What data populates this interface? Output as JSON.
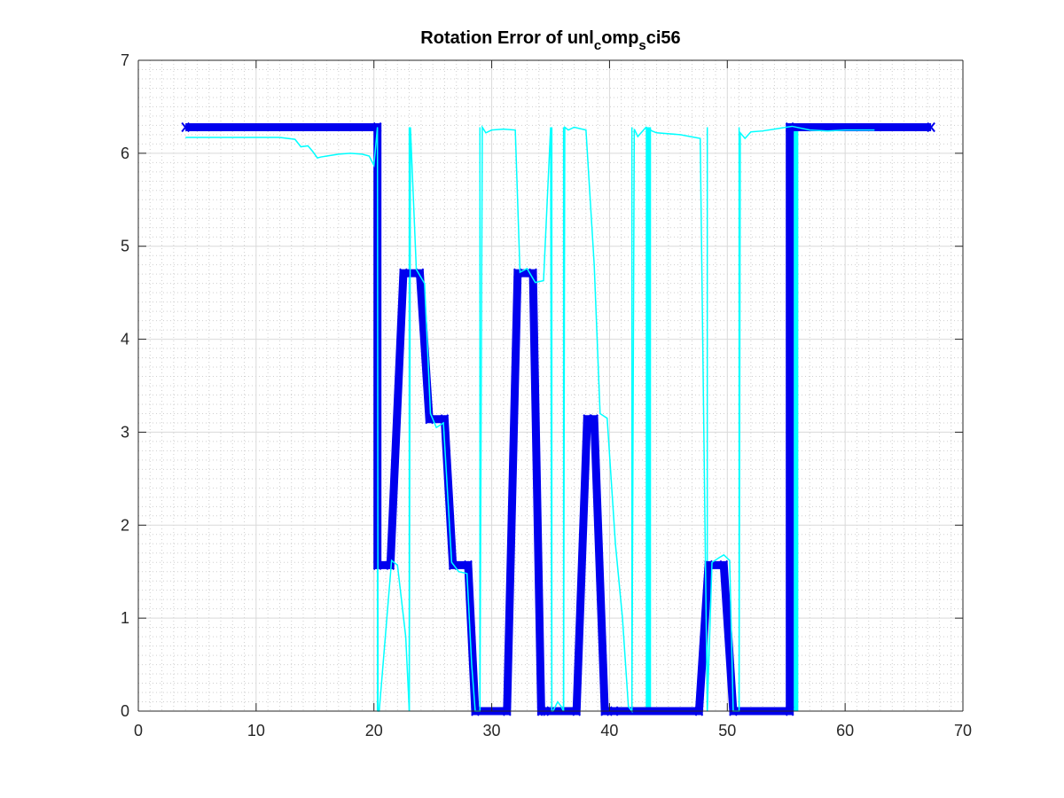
{
  "chart_data": {
    "type": "line",
    "title_parts": [
      "Rotation Error of unl",
      "c",
      "omp",
      "s",
      "ci56"
    ],
    "xlabel": "",
    "ylabel": "",
    "xlim": [
      0,
      70
    ],
    "ylim": [
      0,
      7
    ],
    "xticks": [
      "0",
      "10",
      "20",
      "30",
      "40",
      "50",
      "60",
      "70"
    ],
    "yticks": [
      "0",
      "1",
      "2",
      "3",
      "4",
      "5",
      "6",
      "7"
    ],
    "grid": true,
    "minor_grid": true,
    "legend": "none",
    "colors": {
      "thick_series": "#0000ee",
      "thin_series": "#00ffff",
      "axes": "#262626",
      "grid": "#d9d9d9"
    },
    "series": [
      {
        "color": "#0000ee",
        "width": 9,
        "x": [
          4.0,
          20.3,
          20.3,
          21.4,
          22.5,
          23.9,
          24.7,
          26.0,
          26.7,
          28.0,
          28.6,
          31.3,
          32.2,
          33.5,
          34.2,
          34.5,
          37.2,
          38.1,
          38.7,
          39.6,
          40.4,
          47.6,
          48.4,
          49.7,
          50.5,
          55.3,
          55.3,
          67.3
        ],
        "y": [
          6.28,
          6.28,
          1.57,
          1.57,
          4.71,
          4.71,
          3.14,
          3.14,
          1.57,
          1.57,
          0.0,
          0.0,
          4.71,
          4.71,
          0.0,
          0.0,
          0.0,
          3.14,
          3.14,
          0.0,
          0.0,
          0.0,
          1.57,
          1.57,
          0.0,
          0.0,
          6.28,
          6.28
        ]
      },
      {
        "color": "#00ffff",
        "width": 1.5,
        "x": [
          4.0,
          10.0,
          12.0,
          13.3,
          13.8,
          14.4,
          14.8,
          15.2,
          15.5,
          16.0,
          17.0,
          18.0,
          19.0,
          19.6,
          20.0,
          20.3,
          20.35,
          20.45,
          21.5,
          22.0,
          22.7,
          23.0,
          23.1,
          23.6,
          24.3,
          24.8,
          25.3,
          25.9,
          26.6,
          27.2,
          27.9,
          28.3,
          28.6,
          29.0,
          29.2,
          29.5,
          30.0,
          31.0,
          32.0,
          32.4,
          33.0,
          33.7,
          34.4,
          35.0,
          35.1,
          35.2,
          35.6,
          35.9,
          36.1,
          36.2,
          36.5,
          37.0,
          38.0,
          38.7,
          39.2,
          39.8,
          40.5,
          41.1,
          41.6,
          41.9,
          42.1,
          42.4,
          43.1,
          43.6,
          44.0,
          46.0,
          47.7,
          48.3,
          48.7,
          49.3,
          49.7,
          50.2,
          50.5,
          51.0,
          51.1,
          51.5,
          52.0,
          53.0,
          54.0,
          55.5,
          57.0,
          58.5,
          60.0,
          62.5
        ],
        "y": [
          6.17,
          6.17,
          6.17,
          6.15,
          6.07,
          6.08,
          6.02,
          5.95,
          5.96,
          5.97,
          5.99,
          6.0,
          5.99,
          5.97,
          5.87,
          6.28,
          0.0,
          0.0,
          1.62,
          1.57,
          0.8,
          0.0,
          6.28,
          4.75,
          4.6,
          3.2,
          3.05,
          3.1,
          1.6,
          1.5,
          1.48,
          0.5,
          0.0,
          0.0,
          6.28,
          6.22,
          6.25,
          6.26,
          6.25,
          4.72,
          4.76,
          4.61,
          4.63,
          6.28,
          0.0,
          0.0,
          0.1,
          0.05,
          0.0,
          6.28,
          6.25,
          6.28,
          6.25,
          4.8,
          3.2,
          3.15,
          1.8,
          1.0,
          0.05,
          0.0,
          6.26,
          6.18,
          6.28,
          6.24,
          6.22,
          6.2,
          6.16,
          0.0,
          1.6,
          1.65,
          1.68,
          1.62,
          0.0,
          0.0,
          6.22,
          6.16,
          6.23,
          6.24,
          6.26,
          6.29,
          6.25,
          6.24,
          6.25,
          6.25
        ]
      }
    ],
    "vertical_bars": {
      "color": "#00ffff",
      "thin_width": 1.5,
      "thick_width": 6,
      "thin_x": [
        20.3,
        23.0,
        29.0,
        35.1,
        36.1,
        41.9,
        48.3,
        51.0
      ],
      "thick_x": [
        43.3,
        55.3,
        55.8
      ],
      "y": [
        0,
        6.28
      ]
    }
  }
}
